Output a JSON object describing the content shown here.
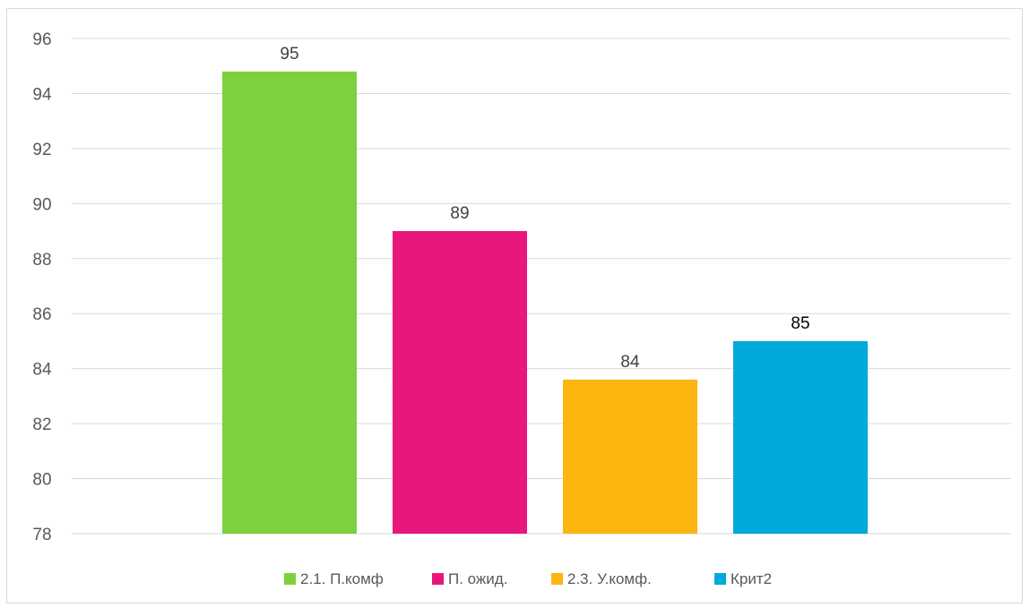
{
  "chart_data": {
    "type": "bar",
    "title": "",
    "xlabel": "",
    "ylabel": "",
    "ylim": [
      78,
      96
    ],
    "y_ticks": [
      "78",
      "80",
      "82",
      "84",
      "86",
      "88",
      "90",
      "92",
      "94",
      "96"
    ],
    "grid": true,
    "legend_position": "bottom",
    "categories": [
      "2.1. П.комф",
      "П. ожид.",
      "2.3. У.комф.",
      "Крит2"
    ],
    "values": [
      94.8,
      89.0,
      83.6,
      85.0
    ],
    "data_labels": [
      "95",
      "89",
      "84",
      "85"
    ],
    "colors": [
      "#7ed13e",
      "#e8177c",
      "#fdb510",
      "#00aadb"
    ]
  }
}
